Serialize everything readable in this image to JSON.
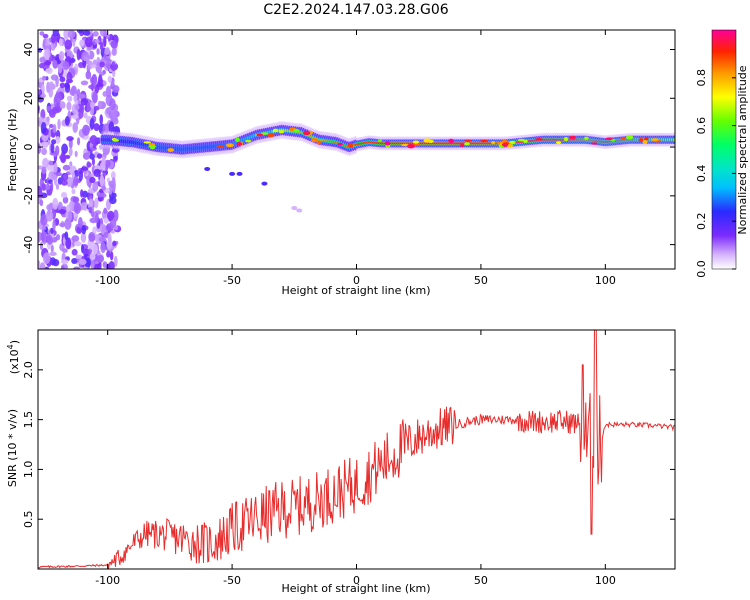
{
  "figure_title": "C2E2.2024.147.03.28.G06",
  "colors": {
    "snr_line": "#e82c2c",
    "axis": "#000000",
    "spectro_low": "#7c2bff",
    "spectro_bg": "#ffffff"
  },
  "chart_data": [
    {
      "type": "heatmap",
      "title": "C2E2.2024.147.03.28.G06",
      "xlabel": "Height of straight line (km)",
      "ylabel": "Frequency (Hz)",
      "xlim": [
        -128,
        128
      ],
      "ylim": [
        -50,
        48
      ],
      "x_ticks": [
        -100,
        -50,
        0,
        50,
        100
      ],
      "x_tick_labels": [
        "-100",
        "-50",
        "0",
        "50",
        "100"
      ],
      "y_ticks": [
        -40,
        -20,
        0,
        20,
        40
      ],
      "y_tick_labels": [
        "-40",
        "-20",
        "0",
        "20",
        "40"
      ],
      "colorbar": {
        "label": "Normalized spectral amplitude",
        "range": [
          0.0,
          1.0
        ],
        "ticks": [
          0.0,
          0.2,
          0.4,
          0.6,
          0.8
        ],
        "tick_labels": [
          "0.0",
          "0.2",
          "0.4",
          "0.6",
          "0.8"
        ],
        "colormap": "rainbow"
      },
      "ridge": {
        "description_free": true,
        "height_km": [
          -100,
          -90,
          -80,
          -70,
          -60,
          -50,
          -40,
          -30,
          -22,
          -15,
          -8,
          -3,
          0,
          5,
          10,
          20,
          40,
          60,
          75,
          85,
          92,
          100,
          110,
          128
        ],
        "freq_hz": [
          3,
          2,
          0,
          -1,
          0,
          1,
          5,
          7,
          6,
          3,
          2,
          0,
          1,
          2,
          1.5,
          1.5,
          1.5,
          1.5,
          3,
          3,
          3,
          2,
          3,
          3
        ],
        "amplitude": [
          0.35,
          0.4,
          0.45,
          0.45,
          0.45,
          0.5,
          0.6,
          0.75,
          0.8,
          0.8,
          0.85,
          0.85,
          0.9,
          0.9,
          0.95,
          1.0,
          1.0,
          0.95,
          0.9,
          0.9,
          0.85,
          0.9,
          0.85,
          0.8
        ]
      },
      "noise_region_km": [
        -128,
        -100
      ]
    },
    {
      "type": "line",
      "xlabel": "Height of straight line (km)",
      "ylabel": "SNR (10 * v/v)",
      "y_multiplier": "(x10",
      "y_multiplier_exp": "4",
      "y_multiplier_close": ")",
      "xlim": [
        -128,
        128
      ],
      "ylim": [
        0.0,
        2.4
      ],
      "x_ticks": [
        -100,
        -50,
        0,
        50,
        100
      ],
      "x_tick_labels": [
        "-100",
        "-50",
        "0",
        "50",
        "100"
      ],
      "y_ticks": [
        0.5,
        1.0,
        1.5,
        2.0
      ],
      "y_tick_labels": [
        "0.5",
        "1.0",
        "1.5",
        "2.0"
      ],
      "series": [
        {
          "name": "SNR",
          "x": [
            -128,
            -110,
            -100,
            -95,
            -90,
            -85,
            -80,
            -75,
            -70,
            -65,
            -60,
            -55,
            -50,
            -45,
            -40,
            -35,
            -30,
            -25,
            -20,
            -15,
            -10,
            -5,
            0,
            5,
            10,
            15,
            20,
            25,
            30,
            35,
            40,
            45,
            50,
            55,
            60,
            65,
            70,
            75,
            80,
            85,
            90,
            93,
            95,
            97,
            100,
            110,
            120,
            128
          ],
          "y": [
            0.02,
            0.03,
            0.04,
            0.12,
            0.25,
            0.35,
            0.35,
            0.33,
            0.3,
            0.27,
            0.25,
            0.3,
            0.4,
            0.45,
            0.5,
            0.55,
            0.6,
            0.62,
            0.65,
            0.7,
            0.75,
            0.8,
            0.85,
            0.95,
            1.05,
            1.15,
            1.25,
            1.32,
            1.38,
            1.42,
            1.45,
            1.48,
            1.5,
            1.5,
            1.5,
            1.5,
            1.48,
            1.48,
            1.48,
            1.48,
            1.45,
            1.2,
            1.4,
            1.2,
            1.45,
            1.45,
            1.44,
            1.42
          ]
        }
      ]
    }
  ]
}
